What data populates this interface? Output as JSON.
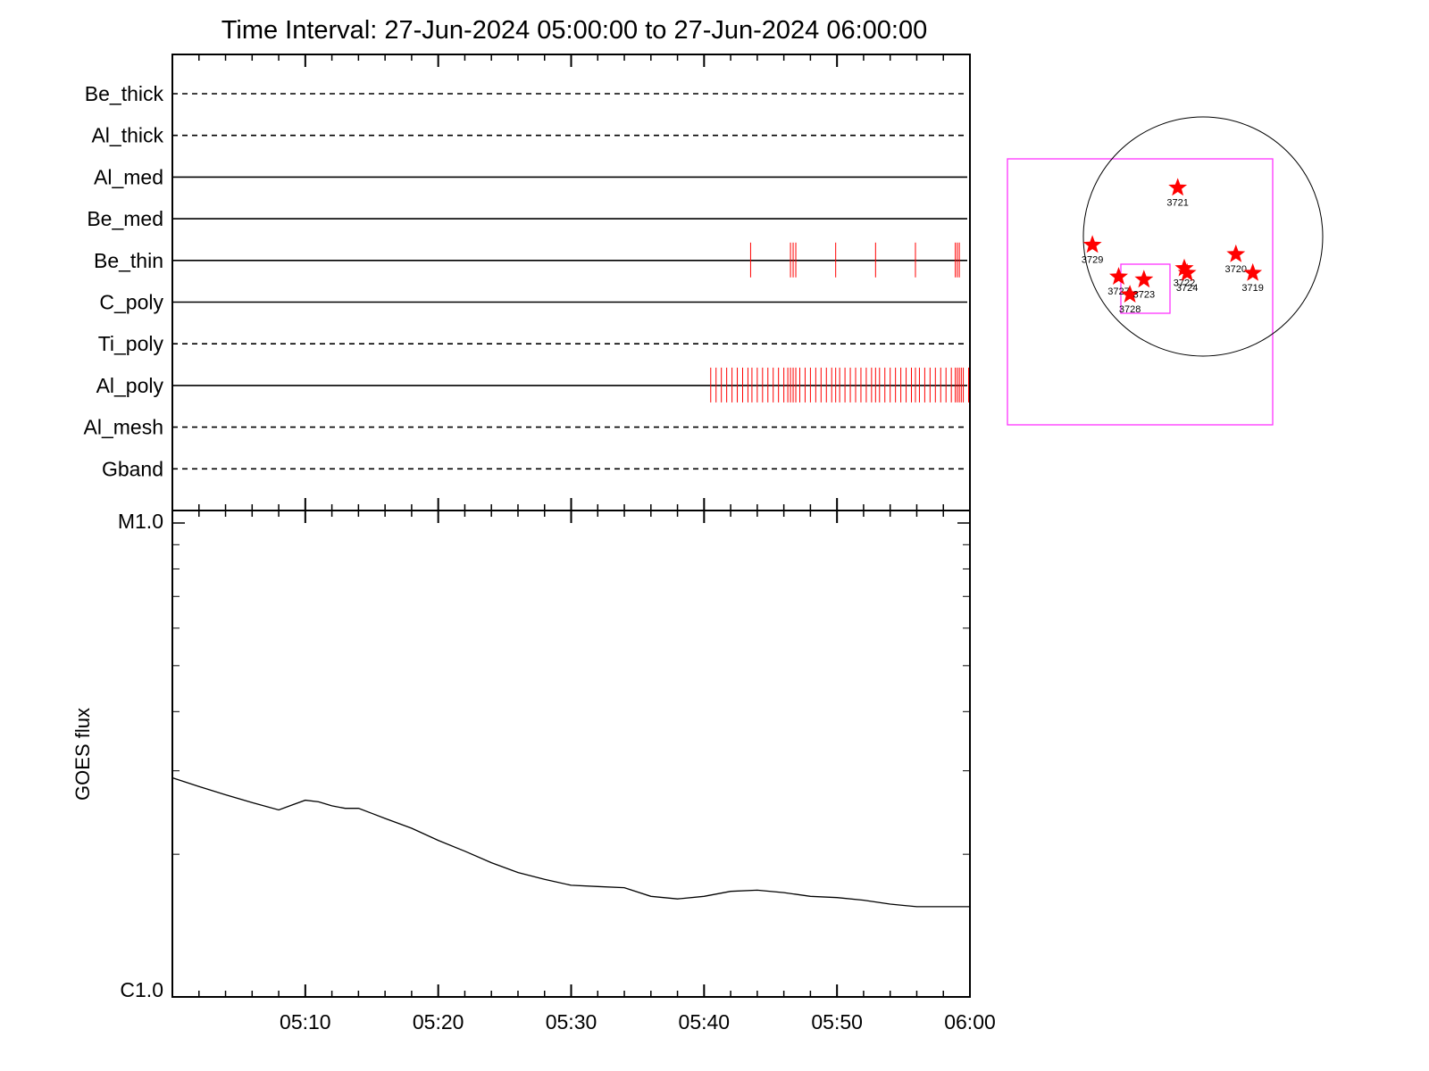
{
  "chart_data": [
    {
      "type": "line",
      "kind": "filter-event-raster",
      "title": "Time Interval: 27-Jun-2024 05:00:00 to 27-Jun-2024 06:00:00",
      "xlim_minutes": [
        0,
        60
      ],
      "channels": [
        {
          "name": "Be_thick",
          "style": "dashed",
          "events": []
        },
        {
          "name": "Al_thick",
          "style": "dashed",
          "events": []
        },
        {
          "name": "Al_med",
          "style": "solid",
          "events": []
        },
        {
          "name": "Be_med",
          "style": "solid",
          "events": []
        },
        {
          "name": "Be_thin",
          "style": "solid",
          "events": [
            43.5,
            46.5,
            46.7,
            46.9,
            49.9,
            52.9,
            55.9,
            58.9,
            59.05,
            59.2
          ]
        },
        {
          "name": "C_poly",
          "style": "solid",
          "events": []
        },
        {
          "name": "Ti_poly",
          "style": "dashed",
          "events": []
        },
        {
          "name": "Al_poly",
          "style": "solid",
          "events": [
            40.5,
            40.9,
            41.3,
            41.7,
            42.1,
            42.5,
            42.9,
            43.3,
            43.6,
            44.0,
            44.4,
            44.8,
            45.2,
            45.6,
            46.0,
            46.3,
            46.5,
            46.7,
            46.9,
            47.2,
            47.6,
            48.0,
            48.4,
            48.8,
            49.2,
            49.6,
            49.9,
            50.2,
            50.6,
            51.0,
            51.4,
            51.8,
            52.2,
            52.6,
            52.9,
            53.2,
            53.6,
            54.0,
            54.4,
            54.8,
            55.2,
            55.6,
            55.9,
            56.2,
            56.6,
            57.0,
            57.4,
            57.8,
            58.2,
            58.6,
            58.9,
            59.05,
            59.2,
            59.35,
            59.5,
            59.9
          ]
        },
        {
          "name": "Al_mesh",
          "style": "dashed",
          "events": []
        },
        {
          "name": "Gband",
          "style": "dashed",
          "events": []
        }
      ]
    },
    {
      "type": "line",
      "kind": "goes-flux",
      "ylabel": "GOES flux",
      "yscale": "log",
      "ylim": [
        1e-06,
        1e-05
      ],
      "ytick_labels": {
        "top": "M1.0",
        "bottom": "C1.0"
      },
      "xlim_minutes": [
        0,
        60
      ],
      "x_ticks": [
        {
          "minute": 10,
          "label": "05:10"
        },
        {
          "minute": 20,
          "label": "05:20"
        },
        {
          "minute": 30,
          "label": "05:30"
        },
        {
          "minute": 40,
          "label": "05:40"
        },
        {
          "minute": 50,
          "label": "05:50"
        },
        {
          "minute": 60,
          "label": "06:00"
        }
      ],
      "series": [
        {
          "x_minutes": [
            0,
            2,
            4,
            6,
            8,
            9,
            10,
            11,
            12,
            13,
            14,
            15,
            16,
            18,
            20,
            22,
            24,
            26,
            28,
            30,
            32,
            34,
            36,
            38,
            40,
            42,
            44,
            46,
            48,
            50,
            52,
            54,
            56,
            58,
            60
          ],
          "flux": [
            2.9e-06,
            2.78e-06,
            2.67e-06,
            2.57e-06,
            2.48e-06,
            2.54e-06,
            2.6e-06,
            2.58e-06,
            2.53e-06,
            2.5e-06,
            2.5e-06,
            2.44e-06,
            2.38e-06,
            2.27e-06,
            2.14e-06,
            2.03e-06,
            1.92e-06,
            1.83e-06,
            1.77e-06,
            1.72e-06,
            1.71e-06,
            1.7e-06,
            1.63e-06,
            1.61e-06,
            1.63e-06,
            1.67e-06,
            1.68e-06,
            1.66e-06,
            1.63e-06,
            1.62e-06,
            1.6e-06,
            1.57e-06,
            1.55e-06,
            1.55e-06,
            1.55e-06
          ]
        }
      ]
    },
    {
      "type": "scatter",
      "kind": "solar-disk-regions",
      "points": [
        {
          "label": "3721",
          "x": -27,
          "y": 52
        },
        {
          "label": "3729",
          "x": -118,
          "y": -9
        },
        {
          "label": "3727",
          "x": -90,
          "y": -43
        },
        {
          "label": "3728",
          "x": -78,
          "y": -62
        },
        {
          "label": "3723",
          "x": -63,
          "y": -46
        },
        {
          "label": "3722",
          "x": -20,
          "y": -34
        },
        {
          "label": "3724",
          "x": -17,
          "y": -39
        },
        {
          "label": "3720",
          "x": 35,
          "y": -19
        },
        {
          "label": "3719",
          "x": 53,
          "y": -39
        }
      ],
      "colors": {
        "marker": "#ff0000",
        "box": "#ff33ff",
        "disk": "#000000"
      }
    }
  ]
}
